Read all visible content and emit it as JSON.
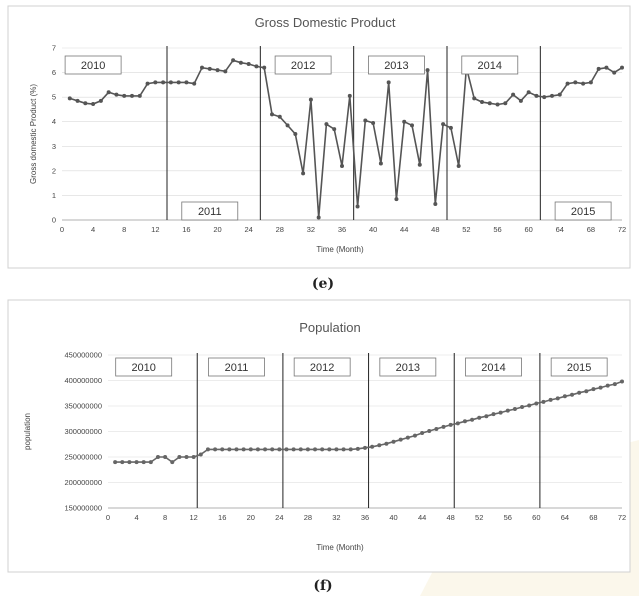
{
  "chart_data": [
    {
      "type": "line",
      "title": "Gross Domestic Product",
      "xlabel": "Time (Month)",
      "ylabel": "Gross domestic Product (%)",
      "caption": "(e)",
      "xlim": [
        0,
        72
      ],
      "ylim": [
        0,
        7
      ],
      "x_ticks": [
        0,
        4,
        8,
        12,
        16,
        20,
        24,
        28,
        32,
        36,
        40,
        44,
        48,
        52,
        56,
        60,
        64,
        68,
        72
      ],
      "y_ticks": [
        0,
        1,
        2,
        3,
        4,
        5,
        6,
        7
      ],
      "grid": "horizontal",
      "line_color": "#555555",
      "year_dividers": [
        13.5,
        25.5,
        37.5,
        49.5,
        61.5
      ],
      "year_labels": [
        {
          "label": "2010",
          "x": 4,
          "position": "top"
        },
        {
          "label": "2011",
          "x": 19,
          "position": "bottom"
        },
        {
          "label": "2012",
          "x": 31,
          "position": "top"
        },
        {
          "label": "2013",
          "x": 43,
          "position": "top"
        },
        {
          "label": "2014",
          "x": 55,
          "position": "top"
        },
        {
          "label": "2015",
          "x": 67,
          "position": "bottom"
        }
      ],
      "series": [
        {
          "x": [
            1,
            2,
            3,
            4,
            5,
            6,
            7,
            8,
            9,
            10,
            11,
            12,
            13,
            14,
            15,
            16,
            17,
            18,
            19,
            20,
            21,
            22,
            23,
            24,
            25,
            26,
            27,
            28,
            29,
            30,
            31,
            32,
            33,
            34,
            35,
            36,
            37,
            38,
            39,
            40,
            41,
            42,
            43,
            44,
            45,
            46,
            47,
            48,
            49,
            50,
            51,
            52,
            53,
            54,
            55,
            56,
            57,
            58,
            59,
            60,
            61,
            62,
            63,
            64,
            65,
            66,
            67,
            68,
            69,
            70,
            71,
            72
          ],
          "values": [
            4.95,
            4.85,
            4.75,
            4.72,
            4.85,
            5.2,
            5.1,
            5.05,
            5.05,
            5.05,
            5.55,
            5.6,
            5.6,
            5.6,
            5.6,
            5.6,
            5.55,
            6.2,
            6.15,
            6.1,
            6.05,
            6.5,
            6.4,
            6.35,
            6.25,
            6.2,
            4.3,
            4.2,
            3.85,
            3.5,
            1.9,
            4.9,
            0.1,
            3.9,
            3.7,
            2.2,
            5.05,
            0.55,
            4.05,
            3.95,
            2.3,
            5.6,
            0.85,
            4.0,
            3.85,
            2.25,
            6.1,
            0.65,
            3.9,
            3.75,
            2.2,
            6.2,
            4.95,
            4.8,
            4.75,
            4.7,
            4.75,
            5.1,
            4.85,
            5.2,
            5.05,
            5.0,
            5.05,
            5.1,
            5.55,
            5.6,
            5.55,
            5.6,
            6.15,
            6.2,
            6.0,
            6.2
          ]
        }
      ]
    },
    {
      "type": "line",
      "title": "Population",
      "xlabel": "Time (Month)",
      "ylabel": "population",
      "caption": "(f)",
      "xlim": [
        0,
        72
      ],
      "ylim": [
        150000000,
        450000000
      ],
      "x_ticks": [
        0,
        4,
        8,
        12,
        16,
        20,
        24,
        28,
        32,
        36,
        40,
        44,
        48,
        52,
        56,
        60,
        64,
        68,
        72
      ],
      "y_ticks": [
        150000000,
        200000000,
        250000000,
        300000000,
        350000000,
        400000000,
        450000000
      ],
      "y_tick_labels": [
        "150000000",
        "200000000",
        "250000000",
        "300000000",
        "350000000",
        "400000000",
        "450000000"
      ],
      "grid": "horizontal",
      "line_color": "#666666",
      "year_dividers": [
        12.5,
        24.5,
        36.5,
        48.5,
        60.5
      ],
      "year_labels": [
        {
          "label": "2010",
          "x": 5,
          "position": "top"
        },
        {
          "label": "2011",
          "x": 18,
          "position": "top"
        },
        {
          "label": "2012",
          "x": 30,
          "position": "top"
        },
        {
          "label": "2013",
          "x": 42,
          "position": "top"
        },
        {
          "label": "2014",
          "x": 54,
          "position": "top"
        },
        {
          "label": "2015",
          "x": 66,
          "position": "top"
        }
      ],
      "series": [
        {
          "x": [
            1,
            2,
            3,
            4,
            5,
            6,
            7,
            8,
            9,
            10,
            11,
            12,
            13,
            14,
            15,
            16,
            17,
            18,
            19,
            20,
            21,
            22,
            23,
            24,
            25,
            26,
            27,
            28,
            29,
            30,
            31,
            32,
            33,
            34,
            35,
            36,
            37,
            38,
            39,
            40,
            41,
            42,
            43,
            44,
            45,
            46,
            47,
            48,
            49,
            50,
            51,
            52,
            53,
            54,
            55,
            56,
            57,
            58,
            59,
            60,
            61,
            62,
            63,
            64,
            65,
            66,
            67,
            68,
            69,
            70,
            71,
            72
          ],
          "values": [
            240000000,
            240000000,
            240000000,
            240000000,
            240000000,
            240000000,
            250000000,
            250000000,
            240000000,
            250000000,
            250000000,
            250000000,
            255000000,
            265000000,
            265000000,
            265000000,
            265000000,
            265000000,
            265000000,
            265000000,
            265000000,
            265000000,
            265000000,
            265000000,
            265000000,
            265000000,
            265000000,
            265000000,
            265000000,
            265000000,
            265000000,
            265000000,
            265000000,
            265000000,
            266000000,
            268000000,
            270000000,
            273000000,
            276000000,
            280000000,
            284000000,
            288000000,
            292000000,
            297000000,
            301000000,
            305000000,
            309000000,
            313000000,
            316000000,
            320000000,
            323000000,
            327000000,
            330000000,
            334000000,
            337000000,
            341000000,
            344000000,
            348000000,
            351000000,
            355000000,
            358000000,
            362000000,
            365000000,
            369000000,
            372000000,
            376000000,
            379000000,
            383000000,
            386000000,
            390000000,
            393000000,
            398000000
          ]
        }
      ]
    }
  ]
}
